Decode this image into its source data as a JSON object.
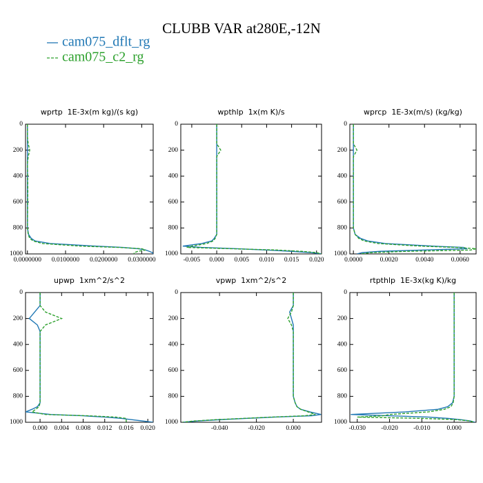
{
  "title": "CLUBB VAR at280E,-12N",
  "legend": [
    {
      "name": "cam075_dflt_rg",
      "color": "#1f77b4",
      "dash": false
    },
    {
      "name": "cam075_c2_rg",
      "color": "#2ca02c",
      "dash": true
    }
  ],
  "chart_data": [
    {
      "type": "line",
      "title": "wprtp  1E-3x(m kg)/(s kg)",
      "xlim": [
        -0.0005,
        0.033
      ],
      "xticks": [
        {
          "value": 0,
          "label": "0.0000000"
        },
        {
          "value": 0.01,
          "label": "0.0100000"
        },
        {
          "value": 0.02,
          "label": "0.0200000"
        },
        {
          "value": 0.03,
          "label": "0.0300000"
        }
      ],
      "ylim": [
        0,
        1000
      ],
      "y_inverted": true,
      "yticks": [
        0,
        200,
        400,
        600,
        800,
        1000
      ],
      "levels": [
        0,
        100,
        150,
        200,
        250,
        300,
        500,
        800,
        850,
        880,
        900,
        920,
        940,
        950,
        960,
        970,
        980,
        990,
        1000
      ],
      "series": [
        {
          "values": [
            0,
            0,
            0,
            0,
            0,
            0,
            0,
            0,
            0.0003,
            0.001,
            0.002,
            0.006,
            0.018,
            0.025,
            0.029,
            0.031,
            0.032,
            0.0328,
            0.033
          ]
        },
        {
          "values": [
            0,
            0,
            0.0002,
            0.0006,
            0.0002,
            0,
            0.0001,
            0,
            0.0002,
            0.0006,
            0.0015,
            0.004,
            0.014,
            0.024,
            0.03,
            0.031,
            0.029,
            0.028,
            0.028
          ]
        }
      ]
    },
    {
      "type": "line",
      "title": "wpthlp  1x(m K)/s",
      "xlim": [
        -0.0072,
        0.021
      ],
      "xticks": [
        -0.005,
        {
          "value": 0,
          "label": "0.000"
        },
        0.005,
        {
          "value": 0.01,
          "label": "0.010"
        },
        0.015,
        {
          "value": 0.02,
          "label": "0.020"
        }
      ],
      "ylim": [
        0,
        1000
      ],
      "y_inverted": true,
      "yticks": [
        0,
        200,
        400,
        600,
        800,
        1000
      ],
      "levels": [
        0,
        100,
        150,
        200,
        250,
        300,
        500,
        800,
        850,
        880,
        900,
        920,
        940,
        950,
        960,
        970,
        980,
        990,
        1000
      ],
      "series": [
        {
          "values": [
            0,
            0,
            0,
            0,
            0,
            0,
            0,
            0,
            0,
            -0.0005,
            -0.001,
            -0.003,
            -0.0068,
            -0.003,
            0.004,
            0.01,
            0.015,
            0.019,
            0.021
          ]
        },
        {
          "values": [
            0,
            0,
            0,
            0.0008,
            0,
            0,
            0,
            0,
            0,
            -0.0003,
            -0.0007,
            -0.002,
            -0.005,
            -0.006,
            0.003,
            0.012,
            0.017,
            0.02,
            0.021
          ]
        }
      ]
    },
    {
      "type": "line",
      "title": "wprcp  1E-3x(m/s) (kg/kg)",
      "xlim": [
        -0.0002,
        0.0069
      ],
      "xticks": [
        {
          "value": 0,
          "label": "0.0000"
        },
        {
          "value": 0.002,
          "label": "0.0020"
        },
        {
          "value": 0.004,
          "label": "0.0040"
        },
        {
          "value": 0.006,
          "label": "0.0060"
        }
      ],
      "ylim": [
        0,
        1000
      ],
      "y_inverted": true,
      "yticks": [
        0,
        200,
        400,
        600,
        800,
        1000
      ],
      "levels": [
        0,
        100,
        150,
        200,
        250,
        300,
        500,
        800,
        850,
        880,
        900,
        920,
        940,
        950,
        960,
        970,
        980,
        990,
        1000
      ],
      "series": [
        {
          "values": [
            0,
            0,
            0,
            0,
            0,
            0,
            0,
            0,
            0.0001,
            0.0004,
            0.0008,
            0.0018,
            0.0045,
            0.0062,
            0.0064,
            0.004,
            0.0015,
            0.0005,
            0.0002
          ]
        },
        {
          "values": [
            0,
            0,
            0,
            0.0002,
            0,
            0,
            0,
            0,
            0.0001,
            0.0003,
            0.0006,
            0.0014,
            0.0038,
            0.0058,
            0.0069,
            0.0066,
            0.003,
            0.001,
            0.0004
          ]
        }
      ]
    },
    {
      "type": "line",
      "title": "upwp  1xm^2/s^2",
      "xlim": [
        -0.0027,
        0.021
      ],
      "xticks": [
        {
          "value": 0,
          "label": "0.000"
        },
        0.004,
        0.008,
        0.012,
        0.016,
        {
          "value": 0.02,
          "label": "0.020"
        }
      ],
      "ylim": [
        0,
        1000
      ],
      "y_inverted": true,
      "yticks": [
        0,
        200,
        400,
        600,
        800,
        1000
      ],
      "levels": [
        0,
        100,
        150,
        200,
        250,
        300,
        500,
        800,
        850,
        880,
        900,
        920,
        940,
        950,
        960,
        970,
        980,
        990,
        1000
      ],
      "series": [
        {
          "values": [
            0,
            0,
            -0.001,
            -0.002,
            -0.0005,
            0,
            0,
            0,
            0,
            -0.0005,
            -0.0015,
            -0.0027,
            0.002,
            0.008,
            0.012,
            0.015,
            0.017,
            0.019,
            0.021
          ]
        },
        {
          "values": [
            0,
            0,
            0.001,
            0.004,
            0.001,
            0,
            0,
            0,
            0,
            -0.0002,
            -0.0008,
            -0.0015,
            0.001,
            0.009,
            0.014,
            0.016,
            0.016,
            0.016,
            0.016
          ]
        }
      ]
    },
    {
      "type": "line",
      "title": "vpwp  1xm^2/s^2",
      "xlim": [
        -0.061,
        0.0153
      ],
      "xticks": [
        {
          "value": -0.04,
          "label": "-0.040"
        },
        {
          "value": -0.02,
          "label": "-0.020"
        },
        {
          "value": 0,
          "label": "0.000"
        }
      ],
      "ylim": [
        0,
        1000
      ],
      "y_inverted": true,
      "yticks": [
        0,
        200,
        400,
        600,
        800,
        1000
      ],
      "levels": [
        0,
        100,
        150,
        200,
        250,
        300,
        500,
        800,
        850,
        880,
        900,
        920,
        940,
        950,
        960,
        970,
        980,
        990,
        1000
      ],
      "series": [
        {
          "values": [
            0,
            0,
            -0.002,
            -0.001,
            0,
            0,
            0,
            0,
            0.001,
            0.002,
            0.004,
            0.009,
            0.015,
            0.01,
            -0.01,
            -0.025,
            -0.04,
            -0.052,
            -0.06
          ]
        },
        {
          "values": [
            0,
            0,
            -0.001,
            -0.003,
            -0.001,
            0,
            0,
            0,
            0.001,
            0.002,
            0.004,
            0.008,
            0.012,
            0.006,
            -0.012,
            -0.027,
            -0.042,
            -0.054,
            -0.06
          ]
        }
      ]
    },
    {
      "type": "line",
      "title": "rtpthlp  1E-3x(kg K)/kg",
      "xlim": [
        -0.0323,
        0.0068
      ],
      "xticks": [
        {
          "value": -0.03,
          "label": "-0.030"
        },
        {
          "value": -0.02,
          "label": "-0.020"
        },
        {
          "value": -0.01,
          "label": "-0.010"
        },
        {
          "value": 0,
          "label": "0.000"
        }
      ],
      "ylim": [
        0,
        1000
      ],
      "y_inverted": true,
      "yticks": [
        0,
        200,
        400,
        600,
        800,
        1000
      ],
      "levels": [
        0,
        100,
        150,
        200,
        250,
        300,
        500,
        800,
        850,
        880,
        900,
        920,
        940,
        950,
        960,
        970,
        980,
        990,
        1000
      ],
      "series": [
        {
          "values": [
            0,
            0,
            0,
            0,
            0,
            0,
            0,
            0,
            -0.0005,
            -0.002,
            -0.005,
            -0.015,
            -0.032,
            -0.02,
            -0.008,
            -0.002,
            0.002,
            0.005,
            0.0065
          ]
        },
        {
          "values": [
            0,
            0,
            0,
            0,
            0,
            0,
            0,
            0,
            -0.0003,
            -0.001,
            -0.003,
            -0.008,
            -0.02,
            -0.022,
            -0.03,
            -0.01,
            0.001,
            0.005,
            0.006
          ]
        }
      ]
    }
  ]
}
